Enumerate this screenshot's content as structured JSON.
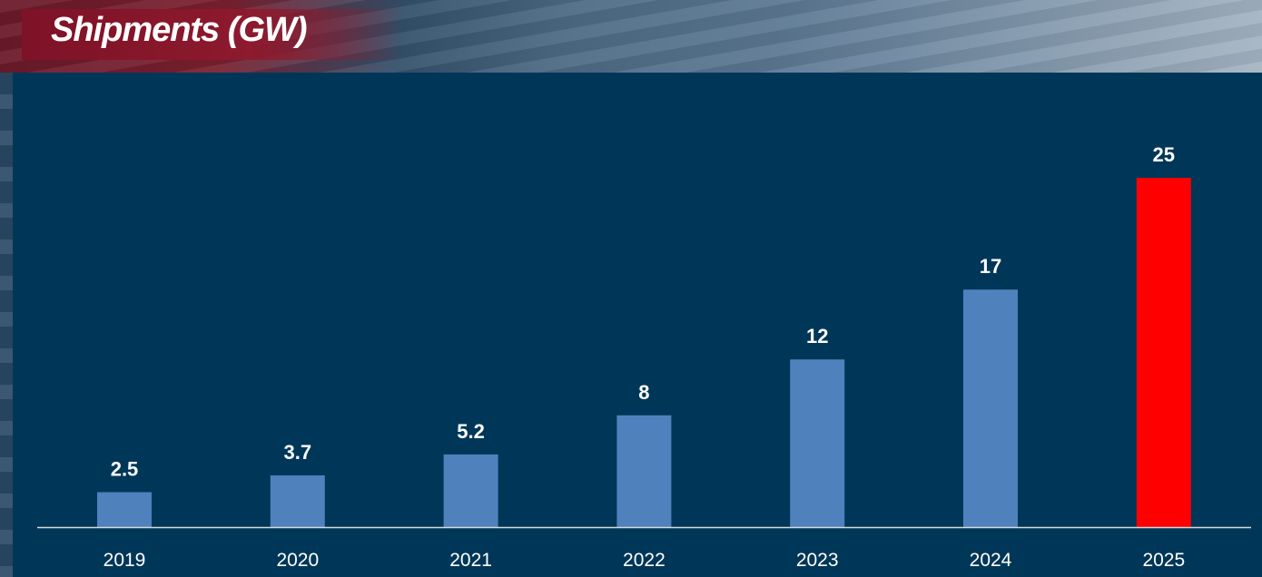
{
  "chart_data": {
    "type": "bar",
    "title": "Shipments (GW)",
    "categories": [
      "2019",
      "2020",
      "2021",
      "2022",
      "2023",
      "2024",
      "2025"
    ],
    "values": [
      2.5,
      3.7,
      5.2,
      8,
      12,
      17,
      25
    ],
    "value_labels": [
      "2.5",
      "3.7",
      "5.2",
      "8",
      "12",
      "17",
      "25"
    ],
    "ylim": [
      0,
      25
    ],
    "grid": false,
    "colors": {
      "bar": "#4f81bd",
      "highlight_bar": "#ff0000",
      "highlight_index": 6,
      "background": "#003758",
      "axis": "#d9d9d9"
    }
  }
}
